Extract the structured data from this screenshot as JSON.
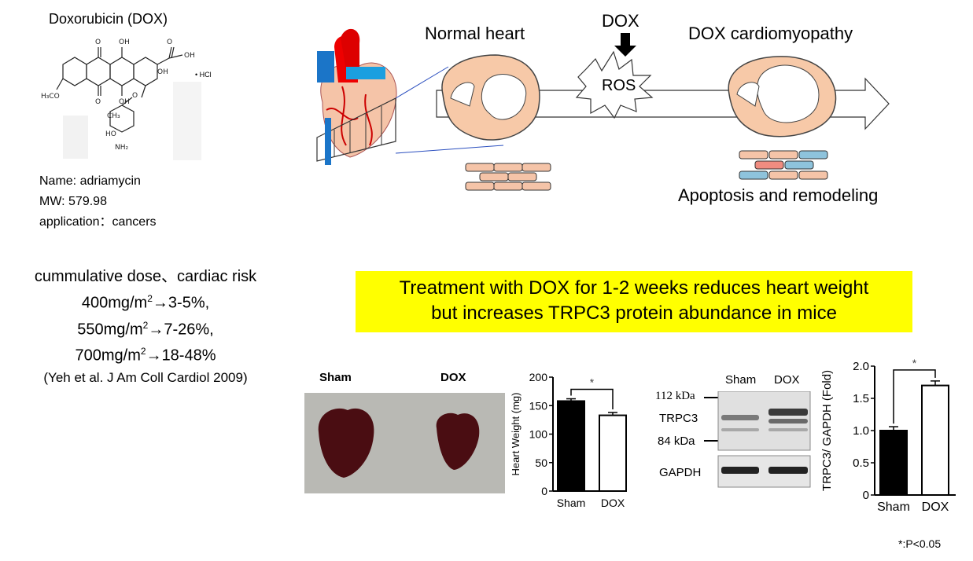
{
  "drug": {
    "title": "Doxorubicin (DOX)",
    "hcl": "• HCl",
    "name_line": "Name: adriamycin",
    "mw_line": "MW: 579.98",
    "application_line": "application：cancers"
  },
  "risk": {
    "heading": "cummulative dose、cardiac risk",
    "lines": [
      {
        "dose": "400mg/m",
        "sup": "2",
        "risk": "→3-5%,"
      },
      {
        "dose": "550mg/m",
        "sup": "2",
        "risk": "→7-26%,"
      },
      {
        "dose": "700mg/m",
        "sup": "2",
        "risk": "→18-48%"
      }
    ],
    "citation": "(Yeh et al. J Am Coll Cardiol 2009)"
  },
  "schematic": {
    "normal_heart": "Normal heart",
    "dox": "DOX",
    "ros": "ROS",
    "dox_cardiomyopathy": "DOX cardiomyopathy",
    "apoptosis": "Apoptosis and remodeling"
  },
  "headline": {
    "line1": "Treatment with DOX for 1-2 weeks reduces heart weight",
    "line2": "but increases TRPC3 protein abundance in mice"
  },
  "photo": {
    "sham_label": "Sham",
    "dox_label": "DOX"
  },
  "chart_data": [
    {
      "type": "bar",
      "categories": [
        "Sham",
        "DOX"
      ],
      "values": [
        158,
        133
      ],
      "errors": [
        4,
        5
      ],
      "colors": [
        "#000000",
        "#ffffff"
      ],
      "ylabel": "Heart Weight  (mg)",
      "yticks": [
        "0",
        "50",
        "100",
        "150",
        "200"
      ],
      "ylim": [
        0,
        200
      ],
      "significance": "*"
    },
    {
      "type": "bar",
      "categories": [
        "Sham",
        "DOX"
      ],
      "values": [
        1.0,
        1.7
      ],
      "errors": [
        0.06,
        0.07
      ],
      "colors": [
        "#000000",
        "#ffffff"
      ],
      "ylabel": "TRPC3/ GAPDH (Fold)",
      "yticks": [
        "0",
        "0.5",
        "1.0",
        "1.5",
        "2.0"
      ],
      "ylim": [
        0,
        2.0
      ],
      "significance": "*"
    }
  ],
  "blot": {
    "sham": "Sham",
    "dox": "DOX",
    "marker_high": "112 kDa",
    "trpc3": "TRPC3",
    "marker_low": "84 kDa",
    "gapdh": "GAPDH"
  },
  "footnote": "*:P<0.05"
}
